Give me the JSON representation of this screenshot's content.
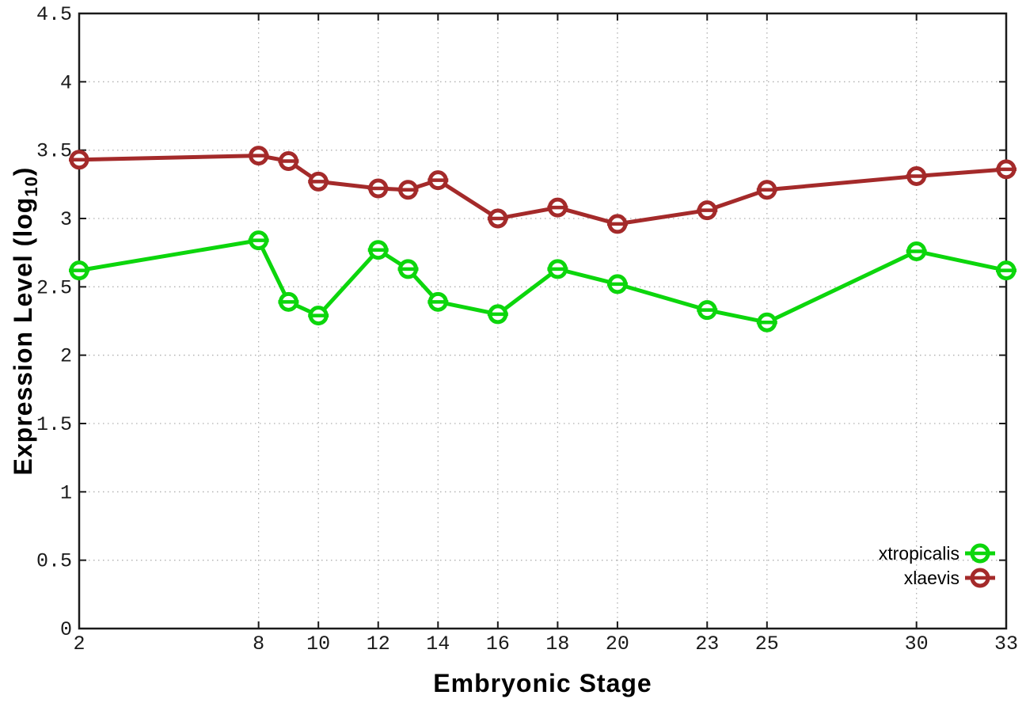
{
  "chart_data": {
    "type": "line",
    "title": "",
    "xlabel": "Embryonic Stage",
    "ylabel": "Expression Level (log10)",
    "ylabel_parts": {
      "prefix": "Expression Level (log",
      "subscript": "10",
      "suffix": ")"
    },
    "xlim": [
      2,
      33
    ],
    "ylim": [
      0,
      4.5
    ],
    "grid": true,
    "legend_position": "bottom-right",
    "marker_style": "open-circle-with-crossbar",
    "x": [
      2,
      8,
      9,
      10,
      12,
      13,
      14,
      16,
      18,
      20,
      23,
      25,
      30,
      33
    ],
    "xtick_values": [
      2,
      8,
      10,
      12,
      14,
      16,
      18,
      20,
      23,
      25,
      30,
      33
    ],
    "xtick_labels": [
      "2",
      "8",
      "10",
      "12",
      "14",
      "16",
      "18",
      "20",
      "23",
      "25",
      "30",
      "33"
    ],
    "ytick_values": [
      0,
      0.5,
      1,
      1.5,
      2,
      2.5,
      3,
      3.5,
      4,
      4.5
    ],
    "ytick_labels": [
      "0",
      "0.5",
      "1",
      "1.5",
      "2",
      "2.5",
      "3",
      "3.5",
      "4",
      "4.5"
    ],
    "series": [
      {
        "name": "xtropicalis",
        "color": "#0cd60c",
        "values": [
          2.62,
          2.84,
          2.39,
          2.29,
          2.77,
          2.63,
          2.39,
          2.3,
          2.63,
          2.52,
          2.33,
          2.24,
          2.76,
          2.62
        ]
      },
      {
        "name": "xlaevis",
        "color": "#a42a2a",
        "values": [
          3.43,
          3.46,
          3.42,
          3.27,
          3.22,
          3.21,
          3.28,
          3.0,
          3.08,
          2.96,
          3.06,
          3.21,
          3.31,
          3.36
        ]
      }
    ]
  },
  "style": {
    "background": "#ffffff",
    "border_color": "#1a1a1a",
    "grid_color": "#b0b0b0",
    "text_color": "#1a1a1a"
  }
}
